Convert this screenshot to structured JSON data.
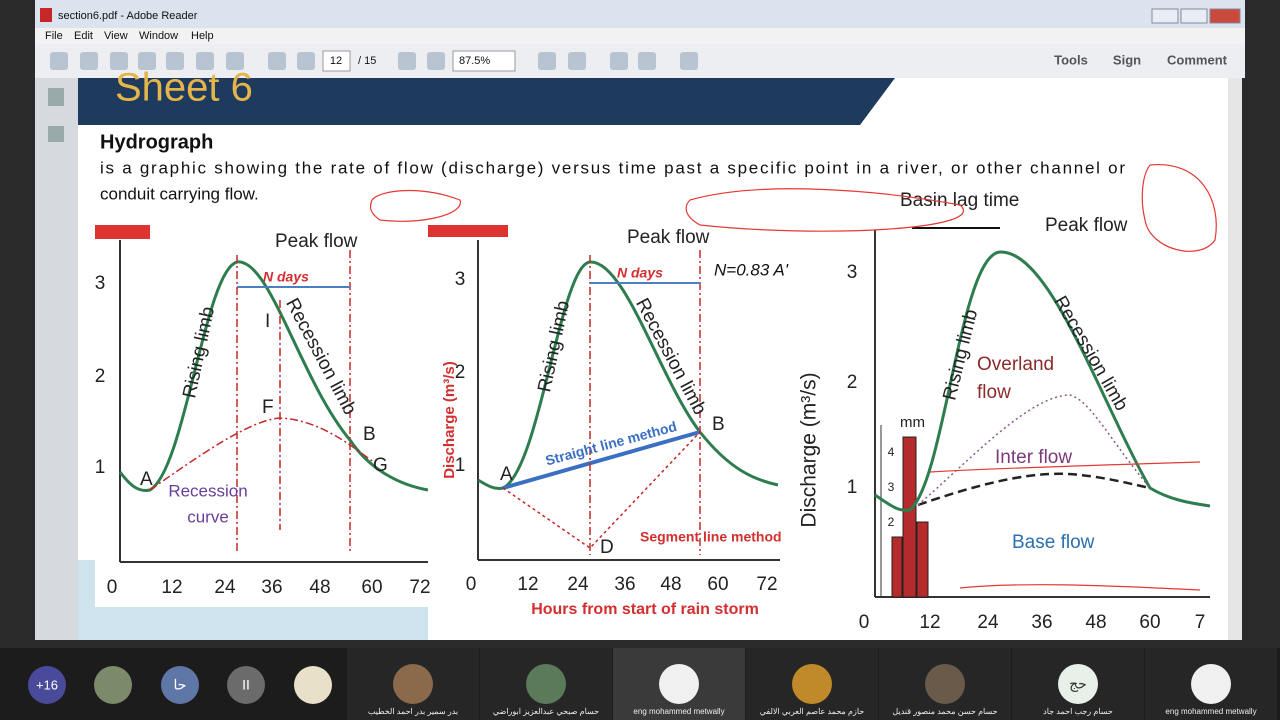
{
  "window": {
    "title": "section6.pdf - Adobe Reader",
    "menu": [
      "File",
      "Edit",
      "View",
      "Window",
      "Help"
    ]
  },
  "toolbar": {
    "page": "12",
    "page_count": "/ 15",
    "zoom": "87.5%",
    "panels": [
      "Tools",
      "Sign",
      "Comment"
    ]
  },
  "document": {
    "heading": "Sheet 6",
    "section_title": "Hydrograph",
    "paragraph": [
      "is a graphic showing the rate of flow (discharge) versus time past a specific point in a river, or other channel or",
      "conduit carrying flow."
    ],
    "figures": [
      {
        "peak": "Peak flow",
        "n_days": "N days",
        "rising": "Rising limb",
        "recession": "Recession limb",
        "points": [
          "A",
          "F",
          "I",
          "B",
          "G"
        ],
        "recession_curve": [
          "Recession",
          "curve"
        ],
        "yticks": [
          "1",
          "2",
          "3"
        ],
        "xticks": [
          "0",
          "12",
          "24",
          "36",
          "48",
          "60",
          "72"
        ]
      },
      {
        "peak": "Peak flow",
        "n_days": "N days",
        "formula": "N=0.83 A'ʼ",
        "rising": "Rising limb",
        "recession": "Recession limb",
        "points": [
          "A",
          "B",
          "D"
        ],
        "straight": "Straight line method",
        "segment": "Segment line method",
        "y_label": "Discharge (m³/s)",
        "x_label": "Hours from start of rain storm",
        "yticks": [
          "1",
          "2",
          "3"
        ],
        "xticks": [
          "0",
          "12",
          "24",
          "36",
          "48",
          "60",
          "72"
        ]
      },
      {
        "lag": "Basin lag time",
        "peak": "Peak flow",
        "rising": "Rising limb",
        "recession": "Recession limb",
        "overland": [
          "Overland",
          "flow"
        ],
        "inter": "Inter flow",
        "base": "Base flow",
        "y_label": "Discharge (m³/s)",
        "rain_unit": "mm",
        "rain_ticks": [
          "2",
          "3",
          "4"
        ],
        "yticks": [
          "1",
          "2",
          "3"
        ],
        "xticks": [
          "0",
          "12",
          "24",
          "36",
          "48",
          "60",
          "7"
        ]
      }
    ]
  },
  "meeting": {
    "more": "+16",
    "initials": [
      "حا",
      "II",
      "حج"
    ],
    "participants": [
      "بدر سمير بدر احمد الخطيب",
      "حسام صبحي عبدالعزيز ابوراضي",
      "eng mohammed metwally",
      "حازم محمد عاصم العربي الالفي",
      "حسام حسن محمد منصور قنديل",
      "حسام رجب احمد جاد",
      "eng mohammed metwally"
    ]
  }
}
